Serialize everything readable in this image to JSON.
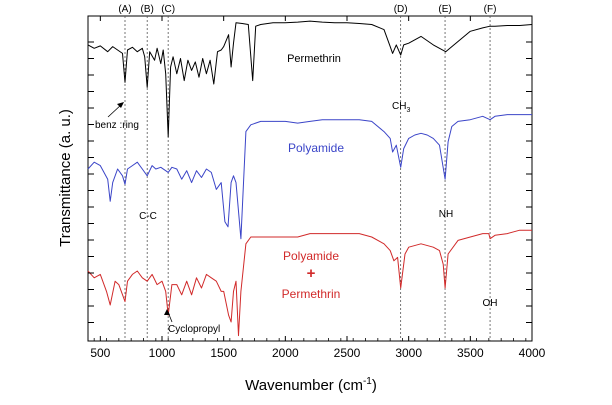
{
  "chart_data": {
    "type": "line",
    "title": "",
    "xlabel": "Wavenumber (cm",
    "xlabel_sup": "-1",
    "xlabel_end": ")",
    "ylabel": "Transmittance (a. u.)",
    "xlim": [
      400,
      4000
    ],
    "xticks": [
      500,
      1000,
      1500,
      2000,
      2500,
      3000,
      3500,
      4000
    ],
    "x_tick_labels": [
      "500",
      "1000",
      "1500",
      "2000",
      "2500",
      "3000",
      "3500",
      "4000"
    ],
    "y_tick_labels_shown": false,
    "grid": false,
    "ref_lines": [
      {
        "label": "(A)",
        "x": 700
      },
      {
        "label": "(B)",
        "x": 880
      },
      {
        "label": "(C)",
        "x": 1050
      },
      {
        "label": "(D)",
        "x": 2935
      },
      {
        "label": "(E)",
        "x": 3295
      },
      {
        "label": "(F)",
        "x": 3660
      }
    ],
    "series": [
      {
        "name": "Permethrin",
        "color": "#000000",
        "x": [
          400,
          450,
          500,
          560,
          600,
          640,
          680,
          700,
          720,
          760,
          800,
          840,
          860,
          880,
          900,
          940,
          960,
          990,
          1010,
          1030,
          1050,
          1070,
          1090,
          1120,
          1150,
          1180,
          1210,
          1240,
          1270,
          1300,
          1330,
          1360,
          1390,
          1420,
          1450,
          1480,
          1500,
          1540,
          1560,
          1580,
          1600,
          1650,
          1700,
          1735,
          1760,
          1800,
          1900,
          2000,
          2100,
          2200,
          2300,
          2400,
          2500,
          2600,
          2700,
          2800,
          2850,
          2870,
          2900,
          2935,
          2960,
          3000,
          3100,
          3200,
          3300,
          3400,
          3500,
          3600,
          3660,
          3700,
          3800,
          3900,
          4000
        ],
        "y": [
          0.35,
          0.45,
          0.38,
          0.55,
          0.4,
          0.5,
          0.6,
          1.45,
          0.5,
          0.42,
          0.55,
          0.45,
          0.7,
          1.6,
          0.55,
          0.8,
          0.45,
          0.9,
          0.5,
          1.2,
          3.05,
          1.0,
          0.7,
          1.2,
          0.75,
          1.4,
          0.8,
          1.1,
          0.85,
          1.3,
          0.75,
          1.2,
          0.8,
          1.5,
          0.55,
          0.5,
          0.4,
          0.05,
          1.0,
          0.3,
          -0.3,
          -0.28,
          -0.25,
          1.4,
          -0.2,
          -0.25,
          -0.3,
          -0.3,
          -0.32,
          -0.35,
          -0.32,
          -0.3,
          -0.3,
          -0.28,
          -0.25,
          -0.1,
          0.4,
          0.6,
          0.35,
          0.65,
          0.35,
          0.3,
          0.1,
          0.35,
          0.55,
          0.25,
          -0.05,
          -0.15,
          -0.2,
          -0.2,
          -0.22,
          -0.22,
          -0.25
        ]
      },
      {
        "name": "Polyamide",
        "color": "#3b45c8",
        "x": [
          400,
          450,
          500,
          560,
          580,
          600,
          640,
          680,
          700,
          720,
          760,
          800,
          840,
          880,
          920,
          950,
          990,
          1030,
          1050,
          1080,
          1120,
          1160,
          1200,
          1240,
          1280,
          1320,
          1360,
          1400,
          1440,
          1480,
          1510,
          1535,
          1560,
          1580,
          1600,
          1640,
          1680,
          1720,
          1800,
          1900,
          2000,
          2100,
          2200,
          2300,
          2400,
          2500,
          2600,
          2700,
          2800,
          2850,
          2870,
          2900,
          2935,
          2960,
          3000,
          3050,
          3100,
          3150,
          3200,
          3250,
          3295,
          3320,
          3350,
          3400,
          3500,
          3600,
          3660,
          3700,
          3800,
          3900,
          4000
        ],
        "y": [
          4.0,
          3.8,
          3.9,
          4.3,
          4.95,
          4.4,
          4.0,
          4.2,
          4.45,
          4.0,
          3.9,
          3.8,
          4.0,
          4.2,
          3.9,
          4.0,
          3.95,
          4.05,
          4.1,
          3.95,
          4.0,
          4.3,
          4.05,
          4.4,
          4.05,
          4.25,
          4.0,
          4.1,
          4.6,
          4.4,
          5.55,
          5.7,
          4.4,
          4.2,
          4.4,
          6.05,
          2.9,
          2.7,
          2.6,
          2.6,
          2.6,
          2.65,
          2.6,
          2.55,
          2.55,
          2.55,
          2.55,
          2.6,
          2.9,
          3.1,
          3.5,
          3.3,
          3.95,
          3.4,
          3.1,
          3.0,
          2.95,
          3.0,
          3.1,
          3.3,
          4.3,
          3.2,
          2.75,
          2.6,
          2.55,
          2.45,
          2.55,
          2.45,
          2.4,
          2.4,
          2.4
        ]
      },
      {
        "name": "Polyamide + Permethrin",
        "color": "#d12a2a",
        "x": [
          400,
          450,
          500,
          550,
          580,
          620,
          650,
          700,
          720,
          760,
          800,
          840,
          880,
          920,
          960,
          1000,
          1030,
          1050,
          1080,
          1120,
          1160,
          1200,
          1240,
          1280,
          1320,
          1360,
          1400,
          1440,
          1480,
          1500,
          1540,
          1560,
          1580,
          1600,
          1620,
          1640,
          1680,
          1720,
          1800,
          1900,
          2000,
          2100,
          2200,
          2300,
          2400,
          2500,
          2600,
          2700,
          2800,
          2850,
          2880,
          2910,
          2935,
          2970,
          3000,
          3100,
          3200,
          3250,
          3280,
          3295,
          3320,
          3400,
          3500,
          3600,
          3650,
          3660,
          3700,
          3800,
          3900,
          4000
        ],
        "y": [
          7.0,
          7.2,
          7.1,
          7.6,
          8.0,
          7.3,
          7.4,
          7.9,
          7.3,
          7.1,
          7.0,
          7.2,
          7.3,
          7.1,
          7.4,
          7.3,
          7.6,
          8.3,
          7.4,
          7.4,
          7.7,
          7.3,
          7.7,
          7.2,
          7.5,
          7.1,
          7.2,
          7.3,
          7.6,
          7.6,
          8.3,
          8.5,
          7.6,
          7.3,
          8.9,
          7.6,
          6.2,
          6.0,
          6.0,
          6.0,
          6.0,
          6.0,
          5.9,
          5.9,
          5.9,
          5.9,
          5.9,
          6.0,
          6.2,
          6.4,
          6.7,
          6.6,
          7.5,
          6.5,
          6.3,
          6.2,
          6.3,
          6.4,
          6.8,
          7.5,
          6.5,
          6.1,
          6.0,
          5.9,
          5.9,
          6.05,
          5.95,
          5.9,
          5.8,
          5.8
        ]
      }
    ],
    "annotations": {
      "permethrin_label": "Permethrin",
      "ch3_main": "CH",
      "ch3_sub": "3",
      "benz_ring": "benz :ring",
      "polyamide_label": "Polyamide",
      "cc": "C-C",
      "nh": "NH",
      "blend_line1": "Polyamide",
      "blend_plus": "+",
      "blend_line2": "Permethrin",
      "oh": "OH",
      "cyclopropyl": "Cyclopropyl"
    }
  }
}
